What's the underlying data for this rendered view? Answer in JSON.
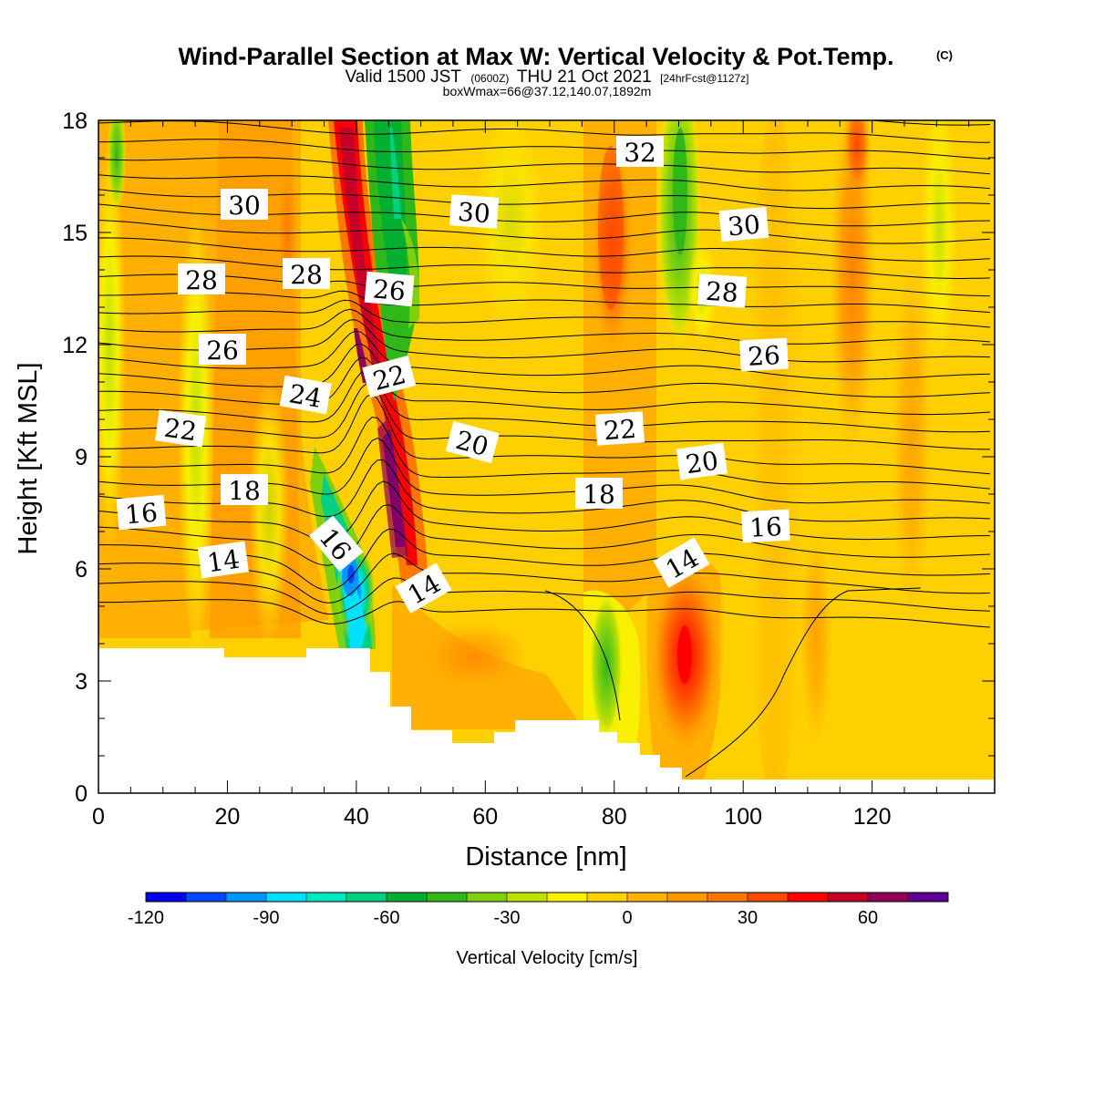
{
  "title": {
    "main": "Wind-Parallel Section at Max W: Vertical Velocity & Pot.Temp.",
    "copyright": "(C)",
    "valid_prefix": "Valid 1500 JST",
    "zulu": "(0600Z)",
    "valid_date": "THU 21 Oct 2021",
    "forecast": "[24hrFcst@1127z]",
    "boxinfo": "boxWmax=66@37.12,140.07,1892m"
  },
  "chart_data": {
    "type": "heatmap",
    "xlabel": "Distance [nm]",
    "ylabel": "Height [Kft MSL]",
    "xlim": [
      0,
      139
    ],
    "ylim": [
      0,
      18
    ],
    "x_ticks": [
      "0",
      "20",
      "40",
      "60",
      "80",
      "100",
      "120"
    ],
    "y_ticks": [
      "0",
      "3",
      "6",
      "9",
      "12",
      "15",
      "18"
    ],
    "colorbar": {
      "title": "Vertical Velocity [cm/s]",
      "min": -120,
      "max": 80,
      "step": 10,
      "tick_labels": [
        "-120",
        "-90",
        "-60",
        "-30",
        "0",
        "30",
        "60"
      ],
      "colors": [
        "#0000f0",
        "#0048ff",
        "#0098ff",
        "#00e0ff",
        "#00e8c0",
        "#00d080",
        "#00b030",
        "#30b818",
        "#80d010",
        "#c0e000",
        "#f8f000",
        "#ffd000",
        "#ffb000",
        "#ff9800",
        "#ff7800",
        "#ff4800",
        "#ff0000",
        "#c80028",
        "#900058",
        "#600090"
      ]
    },
    "theta_contour_labels": [
      "14",
      "16",
      "18",
      "20",
      "22",
      "24",
      "26",
      "28",
      "30",
      "32"
    ],
    "updrafts": [
      {
        "x": 40,
        "height": 12.5,
        "max_w": 60
      },
      {
        "x": 46,
        "height": 8.2,
        "max_w": 70
      },
      {
        "x": 91,
        "height": 3.8,
        "max_w": 40
      }
    ],
    "downdrafts": [
      {
        "x": 39,
        "height": 5.8,
        "min_w": -100
      },
      {
        "x": 46,
        "height": 16.0,
        "min_w": -60
      },
      {
        "x": 88,
        "height": 16.0,
        "min_w": -30
      }
    ]
  }
}
